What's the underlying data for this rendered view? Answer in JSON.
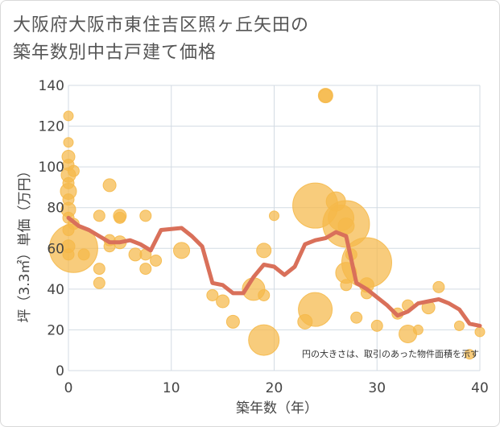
{
  "title_lines": [
    "大阪府大阪市東住吉区照ヶ丘矢田の",
    "築年数別中古戸建て価格"
  ],
  "chart_data": {
    "type": "scatter",
    "title": "大阪府大阪市東住吉区照ヶ丘矢田の築年数別中古戸建て価格",
    "xlabel": "築年数（年）",
    "ylabel": "坪（3.3㎡）単価（万円）",
    "xlim": [
      0,
      40
    ],
    "ylim": [
      0,
      140
    ],
    "x_ticks": [
      "0",
      "10",
      "20",
      "30",
      "40"
    ],
    "y_ticks": [
      "0",
      "20",
      "40",
      "60",
      "80",
      "100",
      "120",
      "140"
    ],
    "grid": true,
    "annotation": "円の大きさは、取引のあった物件面積を示す",
    "colors": {
      "bubble": "#f5b94a",
      "line": "#d9705a",
      "grid": "#d3dbe3"
    },
    "bubbles": [
      {
        "x": 0,
        "y": 125,
        "s": 6
      },
      {
        "x": 0,
        "y": 112,
        "s": 6
      },
      {
        "x": 0,
        "y": 105,
        "s": 8
      },
      {
        "x": 0,
        "y": 101,
        "s": 7
      },
      {
        "x": 0,
        "y": 96,
        "s": 9
      },
      {
        "x": 0,
        "y": 92,
        "s": 7
      },
      {
        "x": 0,
        "y": 88,
        "s": 10
      },
      {
        "x": 0,
        "y": 84,
        "s": 7
      },
      {
        "x": 0,
        "y": 79,
        "s": 9
      },
      {
        "x": 0,
        "y": 75,
        "s": 7
      },
      {
        "x": 0,
        "y": 69,
        "s": 7
      },
      {
        "x": 0,
        "y": 61,
        "s": 8
      },
      {
        "x": 0,
        "y": 57,
        "s": 7
      },
      {
        "x": 0.5,
        "y": 98,
        "s": 7
      },
      {
        "x": 0.5,
        "y": 72,
        "s": 7
      },
      {
        "x": 0.5,
        "y": 60,
        "s": 30
      },
      {
        "x": 1.5,
        "y": 57,
        "s": 7
      },
      {
        "x": 3,
        "y": 76,
        "s": 7
      },
      {
        "x": 3,
        "y": 50,
        "s": 7
      },
      {
        "x": 3,
        "y": 43,
        "s": 7
      },
      {
        "x": 4,
        "y": 91,
        "s": 8
      },
      {
        "x": 4,
        "y": 64,
        "s": 7
      },
      {
        "x": 4,
        "y": 61,
        "s": 7
      },
      {
        "x": 5,
        "y": 76,
        "s": 8
      },
      {
        "x": 5,
        "y": 75,
        "s": 7
      },
      {
        "x": 5,
        "y": 63,
        "s": 8
      },
      {
        "x": 6.5,
        "y": 57,
        "s": 8
      },
      {
        "x": 7.5,
        "y": 76,
        "s": 7
      },
      {
        "x": 7.5,
        "y": 57,
        "s": 7
      },
      {
        "x": 7.5,
        "y": 50,
        "s": 7
      },
      {
        "x": 8.5,
        "y": 54,
        "s": 7
      },
      {
        "x": 11,
        "y": 59,
        "s": 10
      },
      {
        "x": 14,
        "y": 37,
        "s": 7
      },
      {
        "x": 15,
        "y": 34,
        "s": 8
      },
      {
        "x": 16,
        "y": 24,
        "s": 8
      },
      {
        "x": 18,
        "y": 40,
        "s": 14
      },
      {
        "x": 19,
        "y": 59,
        "s": 9
      },
      {
        "x": 19,
        "y": 37,
        "s": 7
      },
      {
        "x": 19,
        "y": 15,
        "s": 19
      },
      {
        "x": 20,
        "y": 76,
        "s": 6
      },
      {
        "x": 23,
        "y": 24,
        "s": 9
      },
      {
        "x": 24,
        "y": 81,
        "s": 28
      },
      {
        "x": 24,
        "y": 30,
        "s": 21
      },
      {
        "x": 25,
        "y": 135,
        "s": 8
      },
      {
        "x": 25,
        "y": 135,
        "s": 9
      },
      {
        "x": 26,
        "y": 83,
        "s": 12
      },
      {
        "x": 26.5,
        "y": 75,
        "s": 16
      },
      {
        "x": 27,
        "y": 72,
        "s": 29
      },
      {
        "x": 27,
        "y": 71,
        "s": 10
      },
      {
        "x": 27,
        "y": 48,
        "s": 13
      },
      {
        "x": 27,
        "y": 42,
        "s": 7
      },
      {
        "x": 27.5,
        "y": 57,
        "s": 7
      },
      {
        "x": 28,
        "y": 26,
        "s": 7
      },
      {
        "x": 29,
        "y": 53,
        "s": 31
      },
      {
        "x": 29,
        "y": 42,
        "s": 9
      },
      {
        "x": 29,
        "y": 38,
        "s": 7
      },
      {
        "x": 30,
        "y": 22,
        "s": 7
      },
      {
        "x": 32,
        "y": 28,
        "s": 7
      },
      {
        "x": 33,
        "y": 32,
        "s": 7
      },
      {
        "x": 33,
        "y": 18,
        "s": 11
      },
      {
        "x": 34,
        "y": 20,
        "s": 6
      },
      {
        "x": 35,
        "y": 31,
        "s": 8
      },
      {
        "x": 36,
        "y": 41,
        "s": 7
      },
      {
        "x": 38,
        "y": 22,
        "s": 6
      },
      {
        "x": 39,
        "y": 8,
        "s": 6
      },
      {
        "x": 40,
        "y": 19,
        "s": 6
      }
    ],
    "trend": {
      "x": [
        0,
        1,
        2,
        3,
        4,
        5,
        6,
        7,
        8,
        9,
        10,
        11,
        12,
        13,
        14,
        15,
        16,
        17,
        18,
        19,
        20,
        21,
        22,
        23,
        24,
        25,
        26,
        27,
        28,
        29,
        30,
        31,
        32,
        33,
        34,
        35,
        36,
        37,
        38,
        39,
        40
      ],
      "y": [
        75,
        71,
        69,
        66,
        63,
        63,
        64,
        62,
        59,
        69,
        69.5,
        70,
        66,
        61,
        43,
        42,
        38,
        38,
        46,
        52,
        51,
        47,
        51,
        62,
        64,
        65,
        68,
        66,
        43,
        40,
        36,
        32,
        27,
        29,
        33,
        34,
        35,
        33,
        30,
        23,
        22
      ]
    }
  }
}
